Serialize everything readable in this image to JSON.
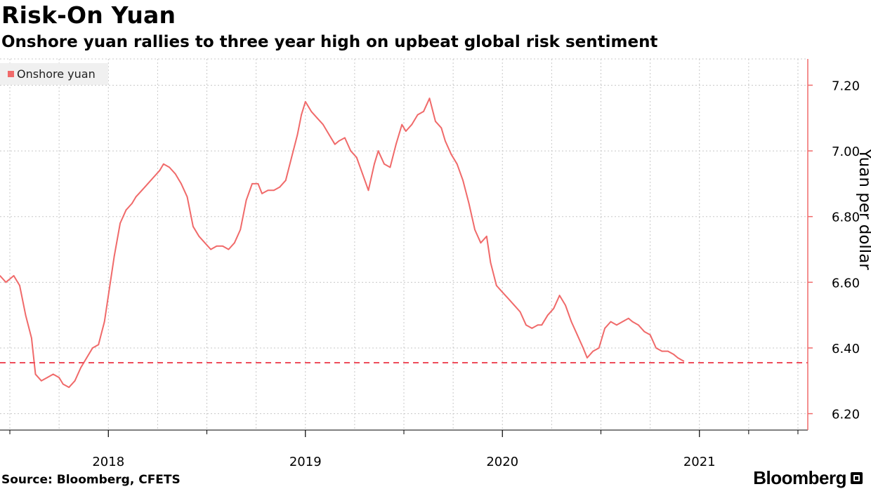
{
  "header": {
    "title": "Risk-On Yuan",
    "subtitle": "Onshore yuan rallies to three year high on upbeat global risk sentiment"
  },
  "footer": {
    "source": "Source: Bloomberg, CFETS",
    "brand": "Bloomberg"
  },
  "colors": {
    "series": "#f06a6a",
    "reference_line": "#ee4c5a",
    "axis": "#f06a6a",
    "grid": "#c8c8c8"
  },
  "chart_data": {
    "type": "line",
    "title": "Risk-On Yuan",
    "subtitle": "Onshore yuan rallies to three year high on upbeat global risk sentiment",
    "ylabel": "Yuan per dollar",
    "xlabel": "",
    "ylim": [
      6.15,
      7.28
    ],
    "xlim": [
      2017.45,
      2021.55
    ],
    "y_ticks": [
      6.2,
      6.4,
      6.6,
      6.8,
      7.0,
      7.2
    ],
    "y_tick_labels": [
      "6.20",
      "6.40",
      "6.60",
      "6.80",
      "7.00",
      "7.20"
    ],
    "x_ticks": [
      2018,
      2019,
      2020,
      2021
    ],
    "x_tick_labels": [
      "2018",
      "2019",
      "2020",
      "2021"
    ],
    "minor_x_ticks": [
      2017.5,
      2018.5,
      2019.5,
      2020.5,
      2021.25,
      2021.5
    ],
    "legend": {
      "label": "Onshore yuan",
      "position": "top-left"
    },
    "grid": true,
    "reference_line": {
      "y": 6.355,
      "style": "dashed"
    },
    "series": [
      {
        "name": "Onshore yuan",
        "points": [
          [
            2017.45,
            6.62
          ],
          [
            2017.48,
            6.6
          ],
          [
            2017.52,
            6.62
          ],
          [
            2017.55,
            6.59
          ],
          [
            2017.58,
            6.5
          ],
          [
            2017.61,
            6.43
          ],
          [
            2017.63,
            6.32
          ],
          [
            2017.66,
            6.3
          ],
          [
            2017.69,
            6.31
          ],
          [
            2017.72,
            6.32
          ],
          [
            2017.75,
            6.31
          ],
          [
            2017.77,
            6.29
          ],
          [
            2017.8,
            6.28
          ],
          [
            2017.83,
            6.3
          ],
          [
            2017.86,
            6.34
          ],
          [
            2017.89,
            6.37
          ],
          [
            2017.92,
            6.4
          ],
          [
            2017.95,
            6.41
          ],
          [
            2017.98,
            6.48
          ],
          [
            2018.01,
            6.6
          ],
          [
            2018.03,
            6.68
          ],
          [
            2018.06,
            6.78
          ],
          [
            2018.09,
            6.82
          ],
          [
            2018.12,
            6.84
          ],
          [
            2018.14,
            6.86
          ],
          [
            2018.17,
            6.88
          ],
          [
            2018.2,
            6.9
          ],
          [
            2018.23,
            6.92
          ],
          [
            2018.26,
            6.94
          ],
          [
            2018.28,
            6.96
          ],
          [
            2018.31,
            6.95
          ],
          [
            2018.34,
            6.93
          ],
          [
            2018.37,
            6.9
          ],
          [
            2018.4,
            6.86
          ],
          [
            2018.43,
            6.77
          ],
          [
            2018.46,
            6.74
          ],
          [
            2018.49,
            6.72
          ],
          [
            2018.52,
            6.7
          ],
          [
            2018.55,
            6.71
          ],
          [
            2018.58,
            6.71
          ],
          [
            2018.61,
            6.7
          ],
          [
            2018.64,
            6.72
          ],
          [
            2018.67,
            6.76
          ],
          [
            2018.7,
            6.85
          ],
          [
            2018.73,
            6.9
          ],
          [
            2018.76,
            6.9
          ],
          [
            2018.78,
            6.87
          ],
          [
            2018.81,
            6.88
          ],
          [
            2018.84,
            6.88
          ],
          [
            2018.87,
            6.89
          ],
          [
            2018.9,
            6.91
          ],
          [
            2018.93,
            6.98
          ],
          [
            2018.96,
            7.05
          ],
          [
            2018.98,
            7.11
          ],
          [
            2019.0,
            7.15
          ],
          [
            2019.03,
            7.12
          ],
          [
            2019.06,
            7.1
          ],
          [
            2019.09,
            7.08
          ],
          [
            2019.12,
            7.05
          ],
          [
            2019.15,
            7.02
          ],
          [
            2019.17,
            7.03
          ],
          [
            2019.2,
            7.04
          ],
          [
            2019.23,
            7.0
          ],
          [
            2019.26,
            6.98
          ],
          [
            2019.29,
            6.93
          ],
          [
            2019.32,
            6.88
          ],
          [
            2019.35,
            6.96
          ],
          [
            2019.37,
            7.0
          ],
          [
            2019.4,
            6.96
          ],
          [
            2019.43,
            6.95
          ],
          [
            2019.46,
            7.02
          ],
          [
            2019.49,
            7.08
          ],
          [
            2019.51,
            7.06
          ],
          [
            2019.54,
            7.08
          ],
          [
            2019.57,
            7.11
          ],
          [
            2019.6,
            7.12
          ],
          [
            2019.63,
            7.16
          ],
          [
            2019.66,
            7.09
          ],
          [
            2019.69,
            7.07
          ],
          [
            2019.71,
            7.03
          ],
          [
            2019.74,
            6.99
          ],
          [
            2019.77,
            6.96
          ],
          [
            2019.8,
            6.91
          ],
          [
            2019.83,
            6.84
          ],
          [
            2019.86,
            6.76
          ],
          [
            2019.89,
            6.72
          ],
          [
            2019.92,
            6.74
          ],
          [
            2019.94,
            6.66
          ],
          [
            2019.97,
            6.59
          ],
          [
            2020.0,
            6.57
          ],
          [
            2020.03,
            6.55
          ],
          [
            2020.06,
            6.53
          ],
          [
            2020.09,
            6.51
          ],
          [
            2020.12,
            6.47
          ],
          [
            2020.15,
            6.46
          ],
          [
            2020.18,
            6.47
          ],
          [
            2020.2,
            6.47
          ],
          [
            2020.23,
            6.5
          ],
          [
            2020.26,
            6.52
          ],
          [
            2020.29,
            6.56
          ],
          [
            2020.32,
            6.53
          ],
          [
            2020.35,
            6.48
          ],
          [
            2020.38,
            6.44
          ],
          [
            2020.41,
            6.4
          ],
          [
            2020.43,
            6.37
          ],
          [
            2020.46,
            6.39
          ],
          [
            2020.49,
            6.4
          ],
          [
            2020.52,
            6.46
          ],
          [
            2020.55,
            6.48
          ],
          [
            2020.58,
            6.47
          ],
          [
            2020.61,
            6.48
          ],
          [
            2020.64,
            6.49
          ],
          [
            2020.66,
            6.48
          ],
          [
            2020.69,
            6.47
          ],
          [
            2020.72,
            6.45
          ],
          [
            2020.75,
            6.44
          ],
          [
            2020.78,
            6.4
          ],
          [
            2020.81,
            6.39
          ],
          [
            2020.84,
            6.39
          ],
          [
            2020.87,
            6.38
          ],
          [
            2020.89,
            6.37
          ],
          [
            2020.92,
            6.36
          ]
        ]
      }
    ]
  }
}
